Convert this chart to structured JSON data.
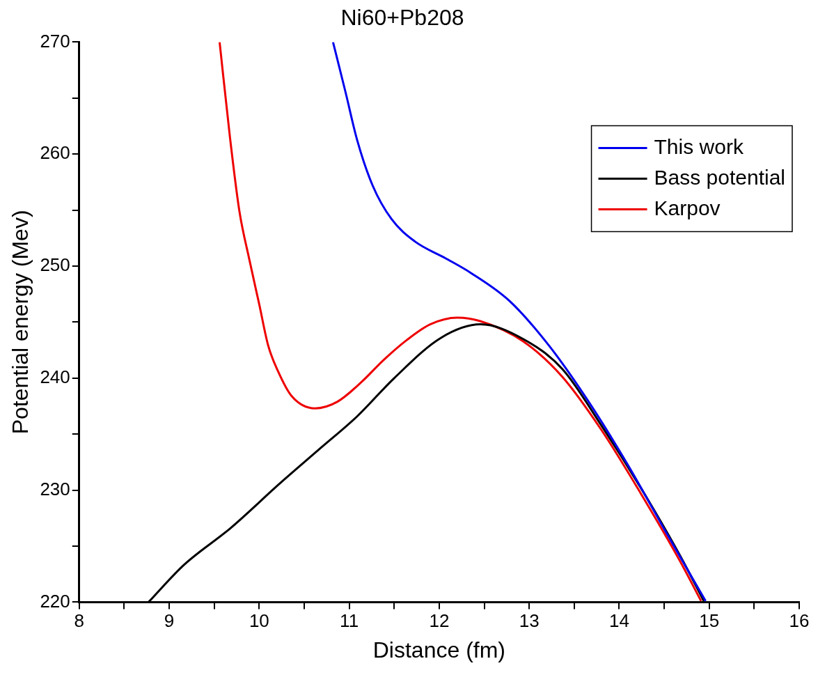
{
  "chart_data": {
    "type": "line",
    "title": "Ni60+Pb208",
    "xlabel": "Distance (fm)",
    "ylabel": "Potential energy (Mev)",
    "xlim": [
      8,
      16
    ],
    "xticks": [
      8,
      {
        "value": 8.5,
        "label": null
      },
      9,
      {
        "value": 9.5,
        "label": null
      },
      10,
      {
        "value": 10.5,
        "label": null
      },
      11,
      {
        "value": 11.5,
        "label": null
      },
      12,
      {
        "value": 12.5,
        "label": null
      },
      13,
      {
        "value": 13.5,
        "label": null
      },
      14,
      {
        "value": 14.5,
        "label": null
      },
      15,
      {
        "value": 15.5,
        "label": null
      },
      16
    ],
    "ylim": [
      220,
      270
    ],
    "yticks": [
      220,
      {
        "value": 225,
        "label": null
      },
      230,
      {
        "value": 235,
        "label": null
      },
      240,
      {
        "value": 245,
        "label": null
      },
      250,
      {
        "value": 255,
        "label": null
      },
      260,
      {
        "value": 265,
        "label": null
      },
      270
    ],
    "grid": false,
    "legend": "top right",
    "marker": "none",
    "line_style": "solid",
    "series": [
      {
        "name": "This work",
        "color": "#0000ee",
        "x": [
          10.82,
          10.96,
          11.09,
          11.26,
          11.47,
          11.73,
          12.07,
          12.35,
          12.78,
          13.22,
          13.66,
          14.1,
          14.53,
          14.96
        ],
        "values": [
          270,
          265.5,
          261.2,
          257.2,
          254.2,
          252.2,
          250.7,
          249.4,
          246.9,
          242.9,
          237.9,
          232.2,
          226.1,
          220.1
        ]
      },
      {
        "name": "Bass potential",
        "color": "#000000",
        "x": [
          8.77,
          9.16,
          9.68,
          10.23,
          10.66,
          11.09,
          11.5,
          12.02,
          12.46,
          12.93,
          13.37,
          13.8,
          14.24,
          14.68,
          14.94
        ],
        "values": [
          220,
          223.3,
          226.6,
          230.6,
          233.6,
          236.6,
          240,
          243.6,
          244.8,
          243.5,
          240.8,
          235.8,
          230.2,
          224.1,
          220.1
        ]
      },
      {
        "name": "Karpov",
        "color": "#ee0000",
        "x": [
          9.56,
          9.675,
          9.78,
          9.89,
          10,
          10.1,
          10.21,
          10.36,
          10.62,
          10.87,
          11.13,
          11.38,
          11.64,
          11.9,
          12.2,
          12.45,
          12.93,
          13.37,
          13.8,
          14.24,
          14.68,
          14.91
        ],
        "values": [
          270,
          261.5,
          254.9,
          250.6,
          246.6,
          242.9,
          240.6,
          238.4,
          237.3,
          237.9,
          239.6,
          241.6,
          243.4,
          244.8,
          245.4,
          245.1,
          243.3,
          240.1,
          235.4,
          229.7,
          223.6,
          220.1
        ]
      }
    ]
  }
}
